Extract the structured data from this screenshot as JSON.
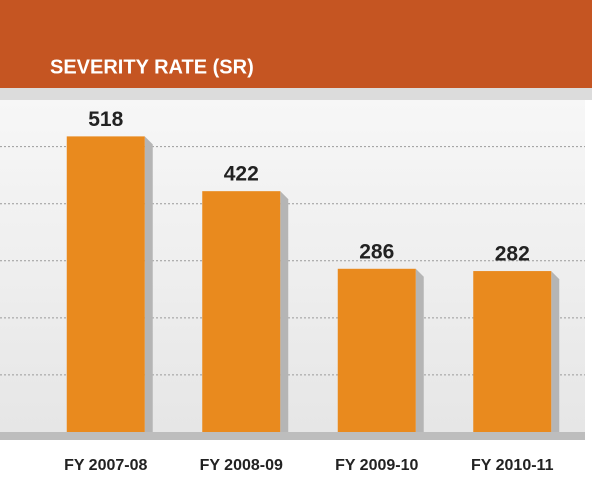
{
  "chart_data": {
    "type": "bar",
    "title": "SEVERITY RATE (SR)",
    "categories": [
      "FY 2007-08",
      "FY 2008-09",
      "FY 2009-10",
      "FY 2010-11"
    ],
    "values": [
      518,
      422,
      286,
      282
    ],
    "color": "#e98a1e",
    "ylim": [
      0,
      580
    ],
    "yticks": [
      0,
      100,
      200,
      300,
      400,
      500
    ],
    "grid": true
  }
}
